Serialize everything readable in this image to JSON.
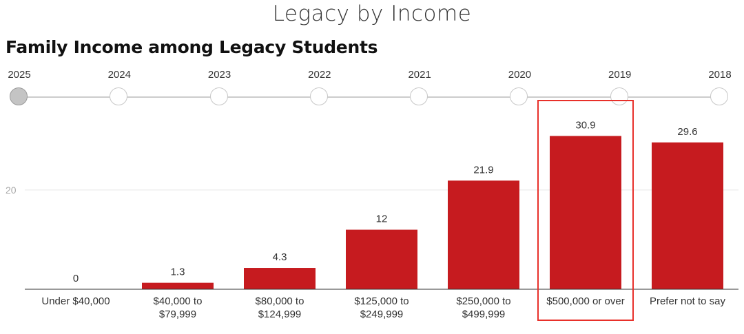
{
  "header": {
    "title": "Legacy by Income"
  },
  "timeline": {
    "years": [
      "2025",
      "2024",
      "2023",
      "2022",
      "2021",
      "2020",
      "2019",
      "2018"
    ],
    "selected": "2025"
  },
  "colors": {
    "bar": "#c61b1f",
    "highlight": "#e8302a",
    "grid": "#e6e6e6",
    "axis": "#333333"
  },
  "chart_data": {
    "type": "bar",
    "title": "Family Income among Legacy Students",
    "categories": [
      [
        "Under $40,000"
      ],
      [
        "$40,000 to",
        "$79,999"
      ],
      [
        "$80,000 to",
        "$124,999"
      ],
      [
        "$125,000 to",
        "$249,999"
      ],
      [
        "$250,000 to",
        "$499,999"
      ],
      [
        "$500,000 or over"
      ],
      [
        "Prefer not to say"
      ]
    ],
    "values": [
      0,
      1.3,
      4.3,
      12,
      21.9,
      30.9,
      29.6
    ],
    "value_labels": [
      "0",
      "1.3",
      "4.3",
      "12",
      "21.9",
      "30.9",
      "29.6"
    ],
    "ylim": [
      0,
      37.9
    ],
    "yticks": [
      20
    ],
    "grid": true,
    "highlighted_category_index": 5
  }
}
